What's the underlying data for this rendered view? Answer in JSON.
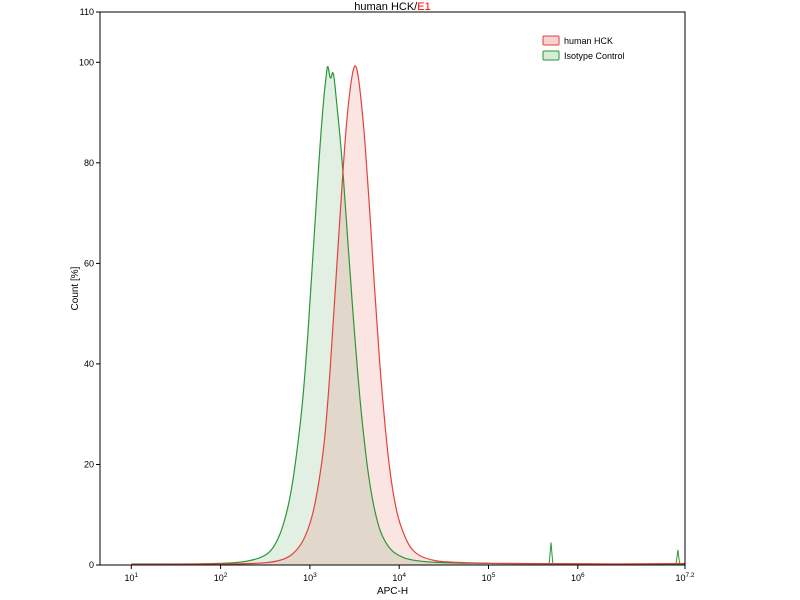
{
  "title": {
    "main": "human HCK/",
    "sample": "E1"
  },
  "chart_data": {
    "type": "area",
    "subtype": "flow-cytometry-histogram-overlay",
    "title": "human HCK/E1",
    "x_axis": {
      "label": "APC-H",
      "scale": "log10",
      "tick_base": "10",
      "min_exp": 0.65,
      "max_exp": 7.2,
      "tick_exponents": [
        1,
        2,
        3,
        4,
        5,
        6,
        7.2
      ]
    },
    "y_axis": {
      "label": "Count [%]",
      "min": 0,
      "max": 110,
      "ticks": [
        0,
        20,
        40,
        60,
        80,
        100,
        110
      ]
    },
    "legend": [
      {
        "id": "human-hck",
        "label": "human HCK",
        "color": "#e2423c",
        "fill": "#f8d2cf"
      },
      {
        "id": "isotype-control",
        "label": "Isotype Control",
        "color": "#2d9637",
        "fill": "#d7ecd4"
      }
    ],
    "series": [
      {
        "id": "isotype-control",
        "name": "Isotype Control",
        "color": "#2d9637",
        "fill": "rgba(70,160,80,0.16)",
        "peak_x": 1600,
        "peak_y": 100,
        "points": [
          [
            1.0,
            0.2
          ],
          [
            1.6,
            0.2
          ],
          [
            2.0,
            0.3
          ],
          [
            2.2,
            0.5
          ],
          [
            2.35,
            0.9
          ],
          [
            2.5,
            1.8
          ],
          [
            2.6,
            3.5
          ],
          [
            2.7,
            7.5
          ],
          [
            2.8,
            15
          ],
          [
            2.9,
            29
          ],
          [
            2.95,
            39
          ],
          [
            3.0,
            52
          ],
          [
            3.05,
            66
          ],
          [
            3.1,
            80
          ],
          [
            3.15,
            92
          ],
          [
            3.18,
            97
          ],
          [
            3.2,
            100
          ],
          [
            3.23,
            96
          ],
          [
            3.26,
            99
          ],
          [
            3.3,
            92
          ],
          [
            3.35,
            83
          ],
          [
            3.4,
            71
          ],
          [
            3.45,
            58
          ],
          [
            3.5,
            46
          ],
          [
            3.55,
            35
          ],
          [
            3.6,
            26
          ],
          [
            3.65,
            18.5
          ],
          [
            3.7,
            13
          ],
          [
            3.75,
            9
          ],
          [
            3.8,
            6
          ],
          [
            3.9,
            3
          ],
          [
            4.0,
            1.8
          ],
          [
            4.1,
            1.1
          ],
          [
            4.3,
            0.6
          ],
          [
            4.6,
            0.4
          ],
          [
            5.0,
            0.3
          ],
          [
            5.6,
            0.3
          ],
          [
            6.2,
            0.2
          ],
          [
            7.0,
            0.2
          ],
          [
            7.2,
            0.2
          ]
        ],
        "spikes": [
          {
            "x": 5.7,
            "h": 4.5
          },
          {
            "x": 7.12,
            "h": 3
          }
        ]
      },
      {
        "id": "human-hck",
        "name": "human HCK",
        "color": "#e2423c",
        "fill": "rgba(226,70,60,0.14)",
        "peak_x": 3200,
        "peak_y": 100,
        "points": [
          [
            1.0,
            0.1
          ],
          [
            2.0,
            0.15
          ],
          [
            2.4,
            0.3
          ],
          [
            2.6,
            0.6
          ],
          [
            2.75,
            1.4
          ],
          [
            2.85,
            2.8
          ],
          [
            2.95,
            5.5
          ],
          [
            3.05,
            11
          ],
          [
            3.15,
            22
          ],
          [
            3.2,
            32
          ],
          [
            3.25,
            45
          ],
          [
            3.3,
            59
          ],
          [
            3.35,
            73
          ],
          [
            3.4,
            86
          ],
          [
            3.45,
            95
          ],
          [
            3.5,
            100
          ],
          [
            3.54,
            98
          ],
          [
            3.6,
            88
          ],
          [
            3.65,
            76
          ],
          [
            3.7,
            62
          ],
          [
            3.75,
            48
          ],
          [
            3.8,
            36
          ],
          [
            3.85,
            26
          ],
          [
            3.9,
            18
          ],
          [
            3.95,
            12.5
          ],
          [
            4.0,
            8.5
          ],
          [
            4.1,
            4
          ],
          [
            4.2,
            2
          ],
          [
            4.35,
            1
          ],
          [
            4.5,
            0.6
          ],
          [
            5.0,
            0.3
          ],
          [
            5.8,
            0.25
          ],
          [
            6.5,
            0.2
          ],
          [
            7.2,
            0.3
          ]
        ]
      }
    ]
  }
}
